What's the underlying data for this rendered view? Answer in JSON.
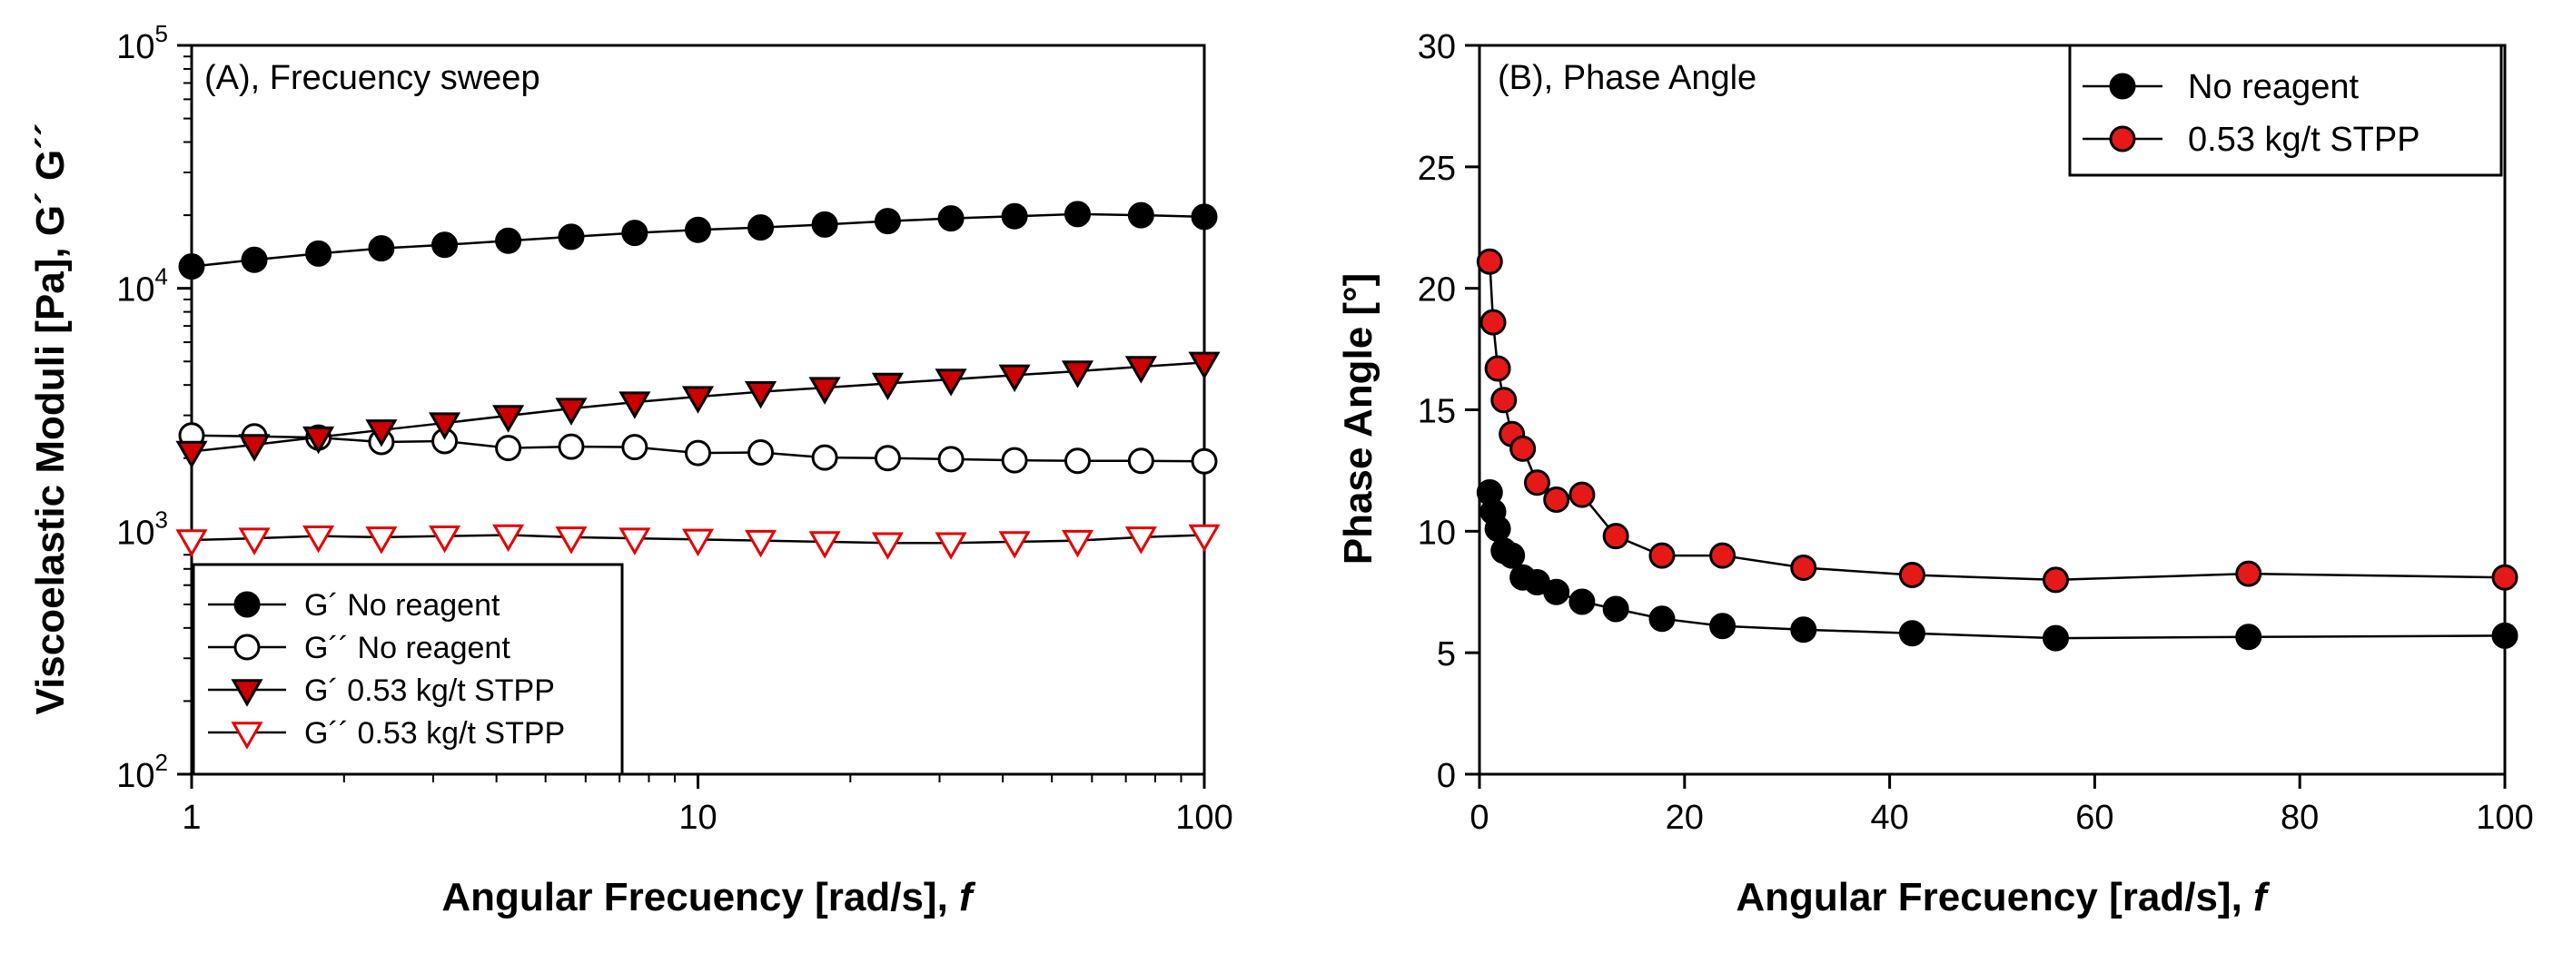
{
  "chart_data": [
    {
      "type": "line",
      "panel_title": "(A), Frecuency sweep",
      "xlabel": "Angular Frecuency [rad/s], ",
      "xlabel_italic": "f",
      "ylabel": "Viscoelastic Moduli [Pa], G´ G´´",
      "xscale": "log",
      "yscale": "log",
      "xlim": [
        1,
        100
      ],
      "ylim": [
        100,
        100000
      ],
      "x_ticks": [
        "1",
        "10",
        "100"
      ],
      "y_ticks": [
        {
          "base": "10",
          "exp": "2"
        },
        {
          "base": "10",
          "exp": "3"
        },
        {
          "base": "10",
          "exp": "4"
        },
        {
          "base": "10",
          "exp": "5"
        }
      ],
      "legend_position": "bottom-left",
      "x": [
        1,
        1.33,
        1.78,
        2.37,
        3.16,
        4.22,
        5.62,
        7.5,
        10,
        13.3,
        17.8,
        23.7,
        31.6,
        42.2,
        56.2,
        75,
        100
      ],
      "series": [
        {
          "name": "G´ No reagent",
          "marker": "circle",
          "fill": "#000000",
          "stroke": "#000000",
          "values": [
            12300,
            13100,
            13900,
            14600,
            15100,
            15700,
            16300,
            16900,
            17400,
            17800,
            18300,
            18900,
            19400,
            19800,
            20200,
            20000,
            19700
          ]
        },
        {
          "name": "G´´ No reagent",
          "marker": "circle",
          "fill": "#ffffff",
          "stroke": "#000000",
          "values": [
            2480,
            2460,
            2430,
            2330,
            2350,
            2200,
            2230,
            2220,
            2100,
            2110,
            2010,
            2000,
            1980,
            1960,
            1950,
            1950,
            1940
          ]
        },
        {
          "name": "G´ 0.53 kg/t STPP",
          "marker": "triangle-down",
          "fill": "#cc0000",
          "stroke": "#000000",
          "values": [
            2130,
            2270,
            2440,
            2610,
            2790,
            2990,
            3200,
            3400,
            3580,
            3750,
            3900,
            4060,
            4220,
            4390,
            4560,
            4760,
            4950
          ]
        },
        {
          "name": "G´´ 0.53 kg/t STPP",
          "marker": "triangle-down",
          "fill": "#ffffff",
          "stroke": "#e60000",
          "values": [
            920,
            935,
            955,
            945,
            955,
            965,
            945,
            935,
            925,
            915,
            905,
            895,
            895,
            905,
            915,
            945,
            965
          ]
        }
      ]
    },
    {
      "type": "line",
      "panel_title": "(B), Phase Angle",
      "xlabel": "Angular Frecuency [rad/s], ",
      "xlabel_italic": "f",
      "ylabel": "Phase Angle [°]",
      "xlim": [
        0,
        100
      ],
      "ylim": [
        0,
        30
      ],
      "x_ticks": [
        "0",
        "20",
        "40",
        "60",
        "80",
        "100"
      ],
      "y_ticks": [
        "0",
        "5",
        "10",
        "15",
        "20",
        "25",
        "30"
      ],
      "legend_position": "top-right",
      "x": [
        1,
        1.33,
        1.78,
        2.37,
        3.16,
        4.22,
        5.62,
        7.5,
        10,
        13.3,
        17.8,
        23.7,
        31.6,
        42.2,
        56.2,
        75,
        100
      ],
      "series": [
        {
          "name": "No reagent",
          "marker": "circle",
          "fill": "#000000",
          "stroke": "#000000",
          "values": [
            11.6,
            10.8,
            10.1,
            9.2,
            9.0,
            8.1,
            7.9,
            7.5,
            7.1,
            6.8,
            6.4,
            6.1,
            5.95,
            5.8,
            5.6,
            5.65,
            5.7
          ]
        },
        {
          "name": "0.53 kg/t STPP",
          "marker": "circle",
          "fill": "#e61919",
          "stroke": "#000000",
          "values": [
            21.1,
            18.6,
            16.7,
            15.4,
            14.0,
            13.4,
            12.0,
            11.3,
            11.5,
            9.8,
            9.0,
            9.0,
            8.5,
            8.2,
            8.0,
            8.25,
            8.1
          ]
        }
      ]
    }
  ]
}
